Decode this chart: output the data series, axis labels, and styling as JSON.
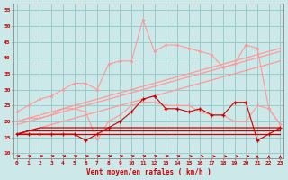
{
  "x": [
    0,
    1,
    2,
    3,
    4,
    5,
    6,
    7,
    8,
    9,
    10,
    11,
    12,
    13,
    14,
    15,
    16,
    17,
    18,
    19,
    20,
    21,
    22,
    23
  ],
  "line_flat1": [
    16,
    16,
    16,
    16,
    16,
    16,
    16,
    16,
    16,
    16,
    16,
    16,
    16,
    16,
    16,
    16,
    16,
    16,
    16,
    16,
    16,
    16,
    16,
    16
  ],
  "line_flat2": [
    16,
    17,
    17,
    17,
    17,
    17,
    17,
    17,
    17,
    17,
    17,
    17,
    17,
    17,
    17,
    17,
    17,
    17,
    17,
    17,
    17,
    17,
    17,
    17
  ],
  "line_flat3": [
    16,
    17,
    18,
    18,
    18,
    18,
    18,
    18,
    18,
    18,
    18,
    18,
    18,
    18,
    18,
    18,
    18,
    18,
    18,
    18,
    18,
    18,
    18,
    18
  ],
  "line_dark_markers": [
    16,
    16,
    16,
    16,
    16,
    16,
    14,
    16,
    18,
    20,
    23,
    27,
    28,
    24,
    24,
    23,
    24,
    22,
    22,
    26,
    26,
    14,
    16,
    18
  ],
  "line_light_low": [
    20,
    21,
    21,
    22,
    24,
    24,
    23,
    14,
    20,
    22,
    25,
    26,
    26,
    25,
    25,
    25,
    23,
    22,
    22,
    20,
    20,
    25,
    24,
    19
  ],
  "line_diag1": [
    16,
    17,
    18,
    19,
    20,
    21,
    22,
    23,
    24,
    25,
    26,
    27,
    28,
    29,
    30,
    31,
    32,
    33,
    34,
    35,
    36,
    37,
    38,
    39
  ],
  "line_diag2": [
    19,
    20,
    21,
    22,
    23,
    24,
    25,
    26,
    27,
    28,
    29,
    30,
    31,
    32,
    33,
    34,
    35,
    36,
    37,
    38,
    39,
    40,
    41,
    42
  ],
  "line_light_upper": [
    23,
    25,
    27,
    28,
    30,
    32,
    32,
    30,
    38,
    39,
    39,
    52,
    42,
    44,
    44,
    43,
    42,
    41,
    37,
    38,
    44,
    43,
    24,
    19
  ],
  "line_diag3": [
    20,
    21,
    22,
    23,
    24,
    25,
    26,
    27,
    28,
    29,
    30,
    31,
    32,
    33,
    34,
    35,
    36,
    37,
    38,
    39,
    40,
    41,
    42,
    43
  ],
  "bg_color": "#cce8e8",
  "grid_color": "#99cccc",
  "dark_red": "#cc0000",
  "light_red": "#ff9999",
  "xlabel": "Vent moyen/en rafales ( km/h )",
  "ylim": [
    8.5,
    57
  ],
  "yticks": [
    10,
    15,
    20,
    25,
    30,
    35,
    40,
    45,
    50,
    55
  ],
  "xlim": [
    -0.3,
    23.3
  ]
}
